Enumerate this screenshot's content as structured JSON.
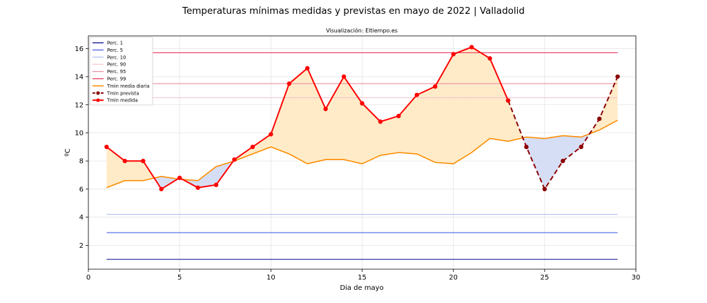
{
  "chart_data": {
    "type": "line",
    "title": "Temperaturas mínimas medidas y previstas en mayo de 2022 | Valladolid",
    "subtitle": "Visualización: Eltiempo.es",
    "xlabel": "Dia de mayo",
    "ylabel": "ºC",
    "xlim": [
      0,
      30
    ],
    "ylim": [
      0.3,
      16.9
    ],
    "xticks": [
      0,
      5,
      10,
      15,
      20,
      25,
      30
    ],
    "yticks": [
      2,
      4,
      6,
      8,
      10,
      12,
      14,
      16
    ],
    "grid": true,
    "legend_position": "top-left",
    "percentiles": [
      {
        "name": "Perc. 1",
        "value": 1.0,
        "color": "#00008b"
      },
      {
        "name": "Perc. 5",
        "value": 2.9,
        "color": "#4a5fe8"
      },
      {
        "name": "Perc. 10",
        "value": 4.2,
        "color": "#b0bff5"
      },
      {
        "name": "Perc. 90",
        "value": 12.5,
        "color": "#f5c6cf"
      },
      {
        "name": "Perc. 95",
        "value": 13.5,
        "color": "#ee8fa3"
      },
      {
        "name": "Perc. 99",
        "value": 15.7,
        "color": "#e8355e"
      }
    ],
    "series": [
      {
        "name": "Tmin media diaria",
        "color": "#ff8c00",
        "x": [
          1,
          2,
          3,
          4,
          5,
          6,
          7,
          8,
          9,
          10,
          11,
          12,
          13,
          14,
          15,
          16,
          17,
          18,
          19,
          20,
          21,
          22,
          23,
          24,
          25,
          26,
          27,
          28,
          29
        ],
        "values": [
          6.1,
          6.6,
          6.6,
          6.9,
          6.7,
          6.6,
          7.6,
          8.0,
          8.5,
          9.0,
          8.5,
          7.8,
          8.1,
          8.1,
          7.8,
          8.4,
          8.6,
          8.5,
          7.9,
          7.8,
          8.6,
          9.6,
          9.4,
          9.7,
          9.6,
          9.8,
          9.7,
          10.2,
          10.9
        ]
      },
      {
        "name": "Tmin prevista",
        "color": "#8b0000",
        "x": [
          23,
          24,
          25,
          26,
          27,
          28,
          29
        ],
        "values": [
          12.3,
          9.0,
          6.0,
          8.0,
          9.0,
          11.0,
          14.0
        ]
      },
      {
        "name": "Tmin medida",
        "color": "#ff0000",
        "x": [
          1,
          2,
          3,
          4,
          5,
          6,
          7,
          8,
          9,
          10,
          11,
          12,
          13,
          14,
          15,
          16,
          17,
          18,
          19,
          20,
          21,
          22,
          23
        ],
        "values": [
          9.0,
          8.0,
          8.0,
          6.0,
          6.8,
          6.1,
          6.3,
          8.1,
          9.0,
          9.9,
          13.5,
          14.6,
          11.7,
          14.0,
          12.1,
          10.8,
          11.2,
          12.7,
          13.3,
          15.6,
          16.1,
          15.3,
          12.3
        ]
      }
    ],
    "fill_colors": {
      "above": "#ffebc8",
      "below": "#d6def5"
    }
  }
}
